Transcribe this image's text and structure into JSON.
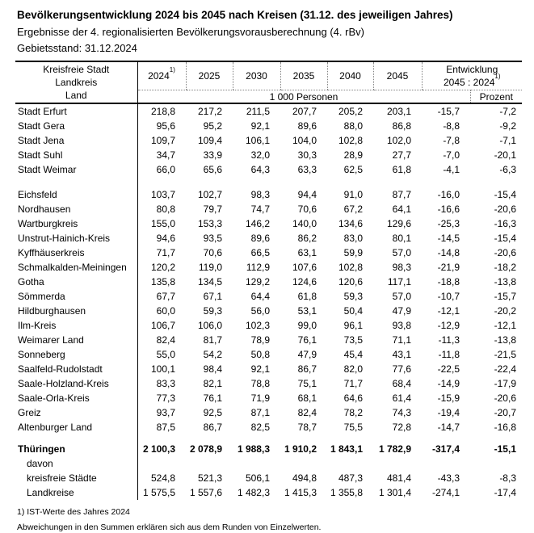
{
  "header": {
    "title": "Bevölkerungsentwicklung 2024 bis 2045 nach Kreisen (31.12. des jeweiligen Jahres)",
    "subtitle": "Ergebnisse der 4. regionalisierten Bevölkerungsvorausberechnung (4. rBv)",
    "stand": "Gebietsstand: 31.12.2024"
  },
  "table": {
    "col0_lines": [
      "Kreisfreie Stadt",
      "Landkreis",
      "Land"
    ],
    "years": [
      {
        "label": "2024",
        "sup": "1)"
      },
      {
        "label": "2025"
      },
      {
        "label": "2030"
      },
      {
        "label": "2035"
      },
      {
        "label": "2040"
      },
      {
        "label": "2045"
      }
    ],
    "entwicklung": {
      "line1": "Entwicklung",
      "line2": "2045 : 2024",
      "sup": "1)"
    },
    "units": {
      "personen": "1 000 Personen",
      "prozent": "Prozent"
    },
    "sections": [
      {
        "name": "kreisfreie-staedte",
        "rows": [
          {
            "label": "Stadt Erfurt",
            "values": [
              "218,8",
              "217,2",
              "211,5",
              "207,7",
              "205,2",
              "203,1",
              "-15,7",
              "-7,2"
            ]
          },
          {
            "label": "Stadt Gera",
            "values": [
              "95,6",
              "95,2",
              "92,1",
              "89,6",
              "88,0",
              "86,8",
              "-8,8",
              "-9,2"
            ]
          },
          {
            "label": "Stadt Jena",
            "values": [
              "109,7",
              "109,4",
              "106,1",
              "104,0",
              "102,8",
              "102,0",
              "-7,8",
              "-7,1"
            ]
          },
          {
            "label": "Stadt Suhl",
            "values": [
              "34,7",
              "33,9",
              "32,0",
              "30,3",
              "28,9",
              "27,7",
              "-7,0",
              "-20,1"
            ]
          },
          {
            "label": "Stadt Weimar",
            "values": [
              "66,0",
              "65,6",
              "64,3",
              "63,3",
              "62,5",
              "61,8",
              "-4,1",
              "-6,3"
            ]
          }
        ]
      },
      {
        "name": "landkreise",
        "rows": [
          {
            "label": "Eichsfeld",
            "values": [
              "103,7",
              "102,7",
              "98,3",
              "94,4",
              "91,0",
              "87,7",
              "-16,0",
              "-15,4"
            ]
          },
          {
            "label": "Nordhausen",
            "values": [
              "80,8",
              "79,7",
              "74,7",
              "70,6",
              "67,2",
              "64,1",
              "-16,6",
              "-20,6"
            ]
          },
          {
            "label": "Wartburgkreis",
            "values": [
              "155,0",
              "153,3",
              "146,2",
              "140,0",
              "134,6",
              "129,6",
              "-25,3",
              "-16,3"
            ]
          },
          {
            "label": "Unstrut-Hainich-Kreis",
            "values": [
              "94,6",
              "93,5",
              "89,6",
              "86,2",
              "83,0",
              "80,1",
              "-14,5",
              "-15,4"
            ]
          },
          {
            "label": "Kyffhäuserkreis",
            "values": [
              "71,7",
              "70,6",
              "66,5",
              "63,1",
              "59,9",
              "57,0",
              "-14,8",
              "-20,6"
            ]
          },
          {
            "label": "Schmalkalden-Meiningen",
            "values": [
              "120,2",
              "119,0",
              "112,9",
              "107,6",
              "102,8",
              "98,3",
              "-21,9",
              "-18,2"
            ]
          },
          {
            "label": "Gotha",
            "values": [
              "135,8",
              "134,5",
              "129,2",
              "124,6",
              "120,6",
              "117,1",
              "-18,8",
              "-13,8"
            ]
          },
          {
            "label": "Sömmerda",
            "values": [
              "67,7",
              "67,1",
              "64,4",
              "61,8",
              "59,3",
              "57,0",
              "-10,7",
              "-15,7"
            ]
          },
          {
            "label": "Hildburghausen",
            "values": [
              "60,0",
              "59,3",
              "56,0",
              "53,1",
              "50,4",
              "47,9",
              "-12,1",
              "-20,2"
            ]
          },
          {
            "label": "Ilm-Kreis",
            "values": [
              "106,7",
              "106,0",
              "102,3",
              "99,0",
              "96,1",
              "93,8",
              "-12,9",
              "-12,1"
            ]
          },
          {
            "label": "Weimarer Land",
            "values": [
              "82,4",
              "81,7",
              "78,9",
              "76,1",
              "73,5",
              "71,1",
              "-11,3",
              "-13,8"
            ]
          },
          {
            "label": "Sonneberg",
            "values": [
              "55,0",
              "54,2",
              "50,8",
              "47,9",
              "45,4",
              "43,1",
              "-11,8",
              "-21,5"
            ]
          },
          {
            "label": "Saalfeld-Rudolstadt",
            "values": [
              "100,1",
              "98,4",
              "92,1",
              "86,7",
              "82,0",
              "77,6",
              "-22,5",
              "-22,4"
            ]
          },
          {
            "label": "Saale-Holzland-Kreis",
            "values": [
              "83,3",
              "82,1",
              "78,8",
              "75,1",
              "71,7",
              "68,4",
              "-14,9",
              "-17,9"
            ]
          },
          {
            "label": "Saale-Orla-Kreis",
            "values": [
              "77,3",
              "76,1",
              "71,9",
              "68,1",
              "64,6",
              "61,4",
              "-15,9",
              "-20,6"
            ]
          },
          {
            "label": "Greiz",
            "values": [
              "93,7",
              "92,5",
              "87,1",
              "82,4",
              "78,2",
              "74,3",
              "-19,4",
              "-20,7"
            ]
          },
          {
            "label": "Altenburger Land",
            "values": [
              "87,5",
              "86,7",
              "82,5",
              "78,7",
              "75,5",
              "72,8",
              "-14,7",
              "-16,8"
            ]
          }
        ]
      },
      {
        "name": "summen",
        "rows": [
          {
            "label": "Thüringen",
            "bold": true,
            "values": [
              "2 100,3",
              "2 078,9",
              "1 988,3",
              "1 910,2",
              "1 843,1",
              "1 782,9",
              "-317,4",
              "-15,1"
            ]
          },
          {
            "label": "davon",
            "indent": true,
            "values": []
          },
          {
            "label": "kreisfreie Städte",
            "indent": true,
            "values": [
              "524,8",
              "521,3",
              "506,1",
              "494,8",
              "487,3",
              "481,4",
              "-43,3",
              "-8,3"
            ]
          },
          {
            "label": "Landkreise",
            "indent": true,
            "values": [
              "1 575,5",
              "1 557,6",
              "1 482,3",
              "1 415,3",
              "1 355,8",
              "1 301,4",
              "-274,1",
              "-17,4"
            ]
          }
        ]
      }
    ]
  },
  "footnotes": [
    "1) IST-Werte des Jahres 2024",
    "Abweichungen in den Summen erklären sich aus dem Runden von Einzelwerten."
  ]
}
